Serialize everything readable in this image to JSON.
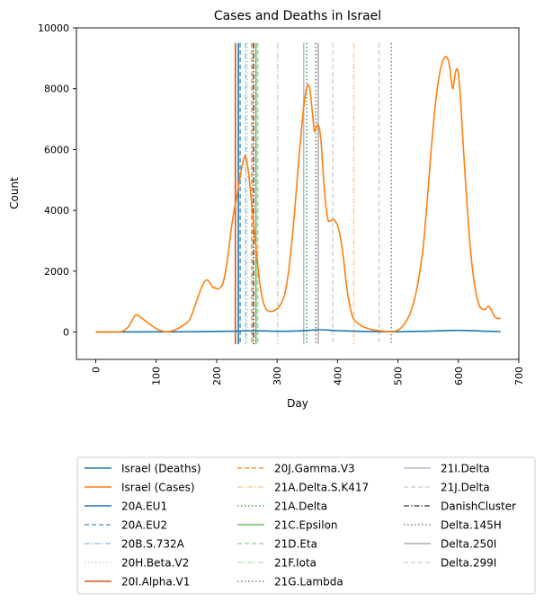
{
  "chart_data": {
    "type": "line",
    "title": "Cases and Deaths in Israel",
    "xlabel": "Day",
    "ylabel": "Count",
    "xlim": [
      -32,
      700
    ],
    "ylim": [
      -900,
      10000
    ],
    "xticks": [
      0,
      100,
      200,
      300,
      400,
      500,
      600,
      700
    ],
    "yticks": [
      0,
      2000,
      4000,
      6000,
      8000,
      10000
    ],
    "grid": false,
    "legend_position": "bottom-center",
    "series": [
      {
        "name": "Israel (Deaths)",
        "color": "#1f77b4",
        "x": [
          0,
          50,
          100,
          150,
          200,
          230,
          260,
          300,
          340,
          370,
          400,
          450,
          500,
          550,
          600,
          650,
          670
        ],
        "values": [
          2,
          3,
          5,
          8,
          20,
          30,
          45,
          25,
          40,
          75,
          45,
          18,
          10,
          30,
          55,
          25,
          12
        ]
      },
      {
        "name": "Israel (Cases)",
        "color": "#ff7f0e",
        "x": [
          0,
          30,
          45,
          55,
          62,
          67,
          72,
          80,
          90,
          100,
          110,
          118,
          130,
          145,
          155,
          163,
          170,
          177,
          182,
          187,
          193,
          197,
          202,
          208,
          213,
          218,
          223,
          228,
          233,
          238,
          243,
          247,
          250,
          253,
          257,
          262,
          267,
          272,
          277,
          282,
          287,
          292,
          297,
          302,
          307,
          312,
          317,
          322,
          327,
          332,
          337,
          342,
          346,
          350,
          354,
          358,
          361,
          363,
          366,
          370,
          373,
          376,
          380,
          384,
          388,
          392,
          396,
          400,
          405,
          410,
          415,
          420,
          425,
          430,
          440,
          450,
          460,
          470,
          480,
          490,
          500,
          510,
          520,
          530,
          540,
          545,
          550,
          555,
          560,
          565,
          570,
          575,
          580,
          585,
          588,
          591,
          594,
          597,
          600,
          603,
          606,
          610,
          615,
          620,
          625,
          630,
          635,
          640,
          645,
          650,
          655,
          660,
          665,
          670
        ],
        "values": [
          0,
          0,
          30,
          200,
          450,
          570,
          520,
          400,
          250,
          110,
          30,
          10,
          60,
          220,
          400,
          800,
          1200,
          1550,
          1700,
          1680,
          1480,
          1450,
          1420,
          1500,
          1800,
          2400,
          3200,
          3900,
          4400,
          5000,
          5550,
          5800,
          5600,
          5200,
          4400,
          3400,
          2400,
          1500,
          1000,
          750,
          680,
          680,
          720,
          800,
          950,
          1200,
          1700,
          2500,
          3500,
          4700,
          5900,
          7000,
          7700,
          8100,
          8000,
          7300,
          6700,
          6600,
          6800,
          6700,
          6200,
          5300,
          4300,
          3700,
          3650,
          3700,
          3650,
          3500,
          3100,
          2400,
          1500,
          900,
          500,
          350,
          200,
          120,
          70,
          40,
          20,
          20,
          60,
          250,
          600,
          1300,
          2500,
          3500,
          4700,
          6000,
          7100,
          8000,
          8600,
          8950,
          9050,
          8800,
          8300,
          8000,
          8400,
          8650,
          8500,
          7800,
          6800,
          5500,
          4000,
          2700,
          1800,
          1200,
          850,
          750,
          750,
          850,
          700,
          500,
          450,
          450
        ]
      }
    ],
    "vlines": [
      {
        "name": "20A.EU1",
        "x": 236,
        "color": "#1f77b4",
        "dash": "solid",
        "opacity": 1.0
      },
      {
        "name": "20A.EU2",
        "x": 239,
        "color": "#1f77b4",
        "dash": "dashed",
        "opacity": 0.7
      },
      {
        "name": "20B.S.732A",
        "x": 248,
        "color": "#1f77b4",
        "dash": "dashdot",
        "opacity": 0.45
      },
      {
        "name": "20H.Beta.V2",
        "x": 251,
        "color": "#1f77b4",
        "dash": "dotted",
        "opacity": 0.3
      },
      {
        "name": "20I.Alpha.V1",
        "x": 231,
        "color": "#d95319",
        "dash": "solid",
        "opacity": 1.0
      },
      {
        "name": "20J.Gamma.V3",
        "x": 258,
        "color": "#ff7f0e",
        "dash": "dashed",
        "opacity": 0.85
      },
      {
        "name": "21A.Delta.S.K417",
        "x": 427,
        "color": "#ff7f0e",
        "dash": "dashdot",
        "opacity": 0.4
      },
      {
        "name": "21A.Delta",
        "x": 349,
        "color": "#2ca02c",
        "dash": "dotted",
        "opacity": 0.9
      },
      {
        "name": "21C.Epsilon",
        "x": 265,
        "color": "#2ca02c",
        "dash": "solid",
        "opacity": 0.7
      },
      {
        "name": "21D.Eta",
        "x": 268,
        "color": "#2ca02c",
        "dash": "dashed",
        "opacity": 0.45
      },
      {
        "name": "21F.Iota",
        "x": 301,
        "color": "#2ca02c",
        "dash": "dashdot",
        "opacity": 0.3
      },
      {
        "name": "21G.Lambda",
        "x": 364,
        "color": "#1e1e50",
        "dash": "dotted",
        "opacity": 0.6
      },
      {
        "name": "21I.Delta",
        "x": 344,
        "color": "#6a5a9e",
        "dash": "solid",
        "opacity": 0.45
      },
      {
        "name": "21J.Delta",
        "x": 469,
        "color": "#6a5a9e",
        "dash": "dashed",
        "opacity": 0.3
      },
      {
        "name": "DanishCluster",
        "x": 261,
        "color": "#555555",
        "dash": "dashdot",
        "opacity": 1.0
      },
      {
        "name": "Delta.145H",
        "x": 489,
        "color": "#777777",
        "dash": "dotted",
        "opacity": 0.9
      },
      {
        "name": "Delta.250I",
        "x": 368,
        "color": "#999999",
        "dash": "solid",
        "opacity": 0.8
      },
      {
        "name": "Delta.299I",
        "x": 392,
        "color": "#bbbbbb",
        "dash": "dashed",
        "opacity": 0.6
      }
    ],
    "vline_ymin": -400,
    "vline_ymax": 9500,
    "legend": [
      "Israel (Deaths)",
      "Israel (Cases)",
      "20A.EU1",
      "20A.EU2",
      "20B.S.732A",
      "20H.Beta.V2",
      "20I.Alpha.V1",
      "20J.Gamma.V3",
      "21A.Delta.S.K417",
      "21A.Delta",
      "21C.Epsilon",
      "21D.Eta",
      "21F.Iota",
      "21G.Lambda",
      "21I.Delta",
      "21J.Delta",
      "DanishCluster",
      "Delta.145H",
      "Delta.250I",
      "Delta.299I"
    ]
  }
}
